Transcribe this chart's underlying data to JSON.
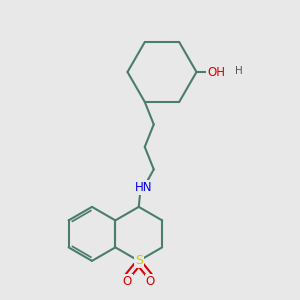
{
  "bg_color": "#e8e8e8",
  "bond_color": "#4a7c6f",
  "bond_width": 1.5,
  "N_color": "#0000ee",
  "O_color": "#dd0000",
  "S_color": "#cccc00",
  "font_size": 8.5,
  "fig_size": [
    3.0,
    3.0
  ],
  "xlim": [
    0,
    10
  ],
  "ylim": [
    0,
    10
  ]
}
